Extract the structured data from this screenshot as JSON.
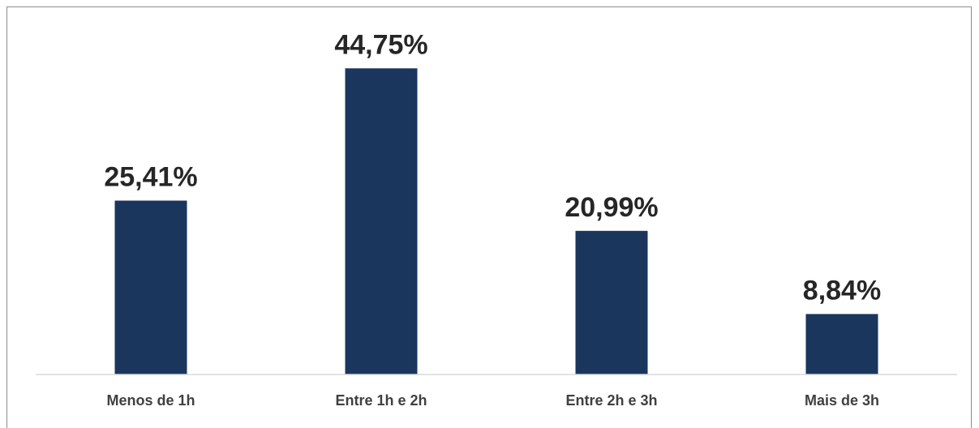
{
  "chart_data": {
    "type": "bar",
    "categories": [
      "Menos de 1h",
      "Entre 1h e 2h",
      "Entre 2h e 3h",
      "Mais de 3h"
    ],
    "values": [
      25.41,
      44.75,
      20.99,
      8.84
    ],
    "data_labels": [
      "25,41%",
      "44,75%",
      "20,99%",
      "8,84%"
    ],
    "title": "",
    "xlabel": "",
    "ylabel": "",
    "ylim": [
      0,
      50
    ],
    "grid": false,
    "legend": "none",
    "bar_color": "#1a365d"
  }
}
